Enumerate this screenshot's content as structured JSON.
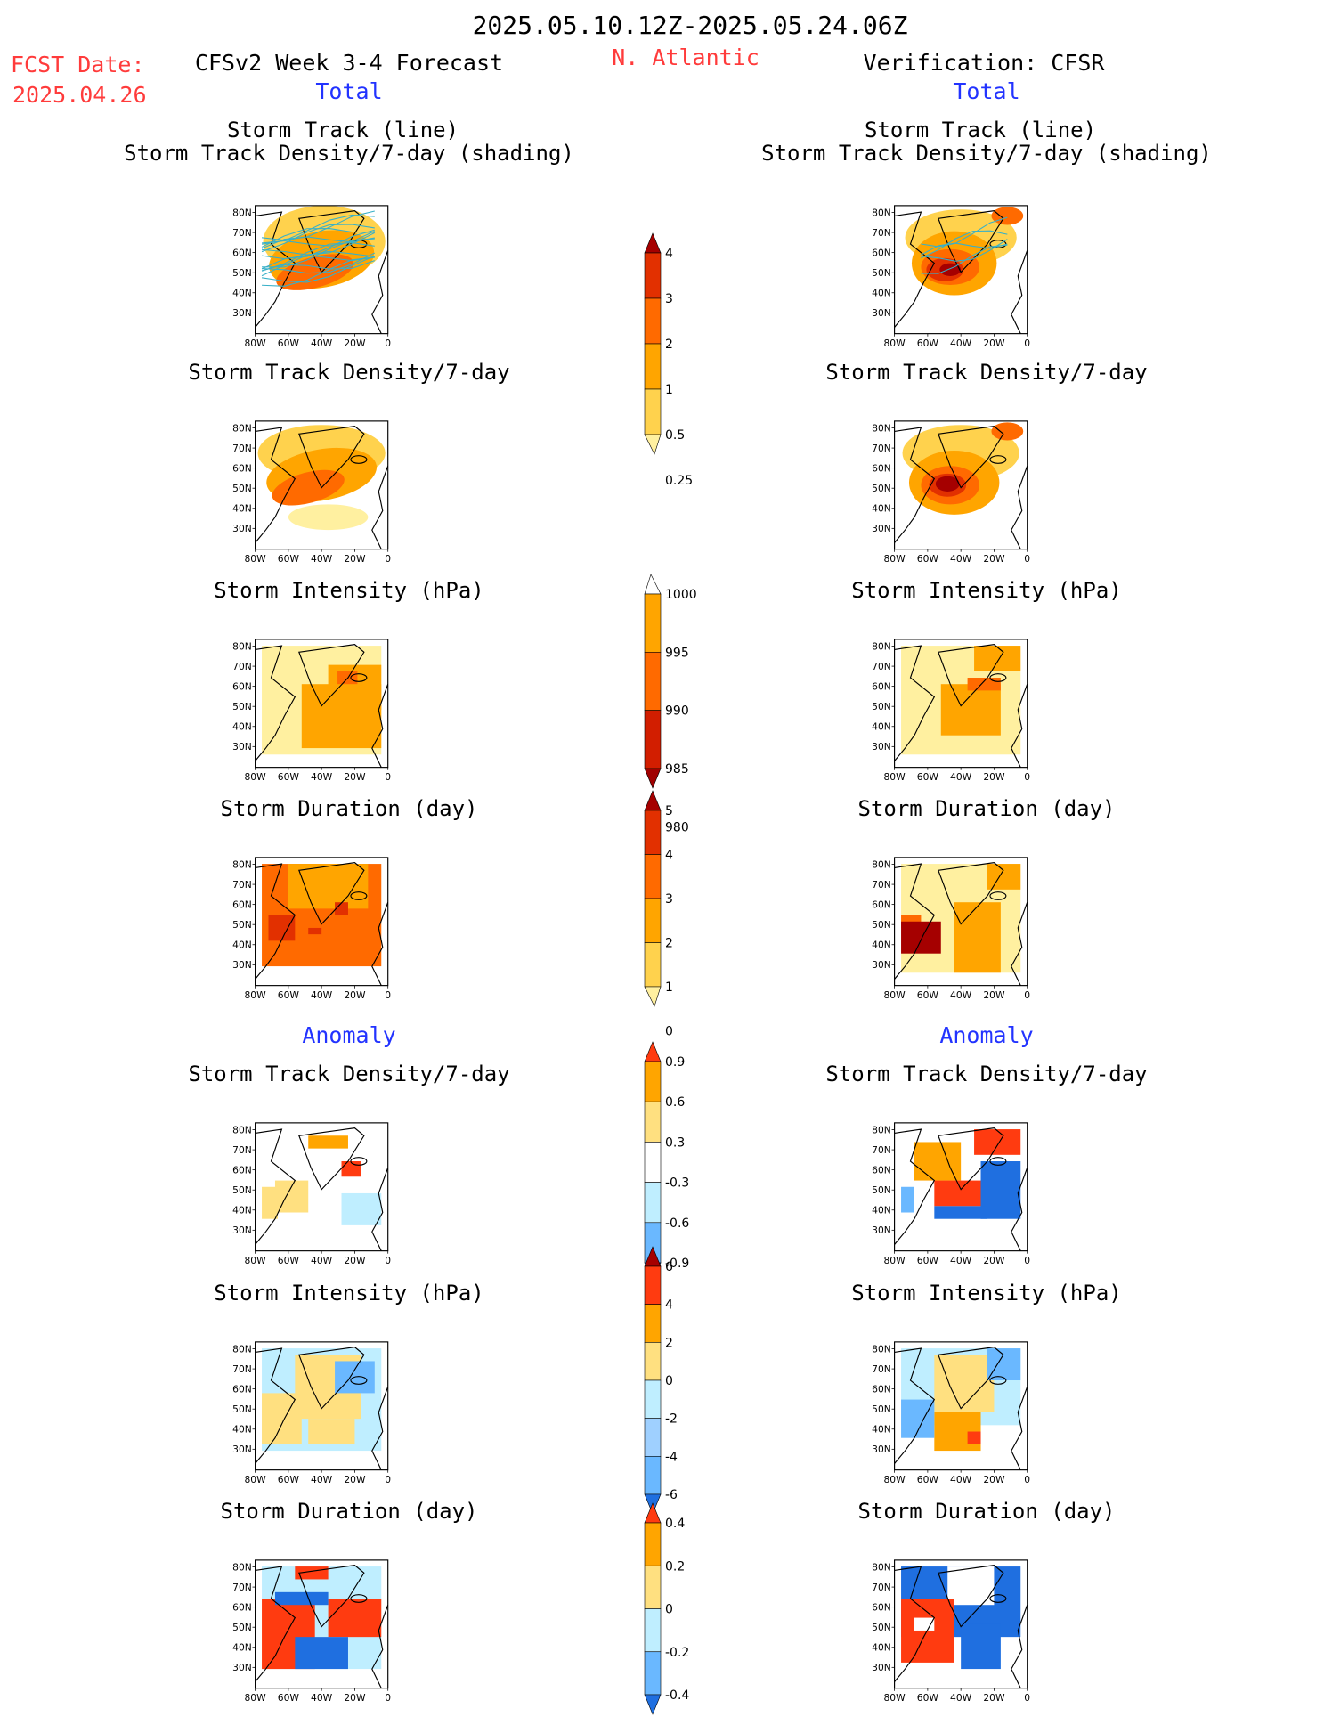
{
  "header": {
    "period": "2025.05.10.12Z-2025.05.24.06Z",
    "fcst_label": "FCST Date:",
    "fcst_date": "2025.04.26",
    "model_title": "CFSv2 Week 3-4 Forecast",
    "region": "N. Atlantic",
    "verification": "Verification: CFSR",
    "total_left": "Total",
    "total_right": "Total",
    "anomaly_left": "Anomaly",
    "anomaly_right": "Anomaly"
  },
  "axes": {
    "lat_ticks": [
      "80N",
      "70N",
      "60N",
      "50N",
      "40N",
      "30N"
    ],
    "lon_ticks": [
      "80W",
      "60W",
      "40W",
      "20W",
      "0"
    ]
  },
  "panels": {
    "track": {
      "title_line1": "Storm Track (line)",
      "title_line2": "Storm Track Density/7-day (shading)"
    },
    "density": {
      "title": "Storm Track Density/7-day"
    },
    "intensity": {
      "title": "Storm Intensity (hPa)"
    },
    "duration": {
      "title": "Storm Duration (day)"
    }
  },
  "colorbars": {
    "density_total": {
      "labels": [
        "4",
        "3",
        "2",
        "1",
        "0.5",
        "0.25"
      ],
      "colors": [
        "#a50000",
        "#e23000",
        "#ff6a00",
        "#ffa500",
        "#ffd24d",
        "#fff0a0"
      ]
    },
    "intensity_total": {
      "labels": [
        "1000",
        "995",
        "990",
        "985",
        "980"
      ],
      "colors": [
        "#fff7b0",
        "#ffa500",
        "#ff6a00",
        "#d21e00",
        "#a00000"
      ]
    },
    "duration_total": {
      "labels": [
        "5",
        "4",
        "3",
        "2",
        "1",
        "0"
      ],
      "colors": [
        "#a50000",
        "#e23000",
        "#ff6a00",
        "#ffa500",
        "#ffd24d",
        "#fff0a0"
      ]
    },
    "density_anom": {
      "labels": [
        "0.9",
        "0.6",
        "0.3",
        "-0.3",
        "-0.6",
        "-0.9"
      ],
      "colors": [
        "#ff3b10",
        "#ffa500",
        "#ffe080",
        "#ffffff",
        "#bfeeff",
        "#6ab8ff",
        "#1f6fe0"
      ]
    },
    "intensity_anom": {
      "labels": [
        "6",
        "4",
        "2",
        "0",
        "-2",
        "-4",
        "-6"
      ],
      "colors": [
        "#a50000",
        "#ff3b10",
        "#ffa500",
        "#ffe080",
        "#bfeeff",
        "#9fd0ff",
        "#6ab8ff",
        "#1f6fe0"
      ]
    },
    "duration_anom": {
      "labels": [
        "0.4",
        "0.2",
        "0",
        "-0.2",
        "-0.4"
      ],
      "colors": [
        "#ff3b10",
        "#ffa500",
        "#ffe080",
        "#bfeeff",
        "#6ab8ff",
        "#1f6fe0"
      ]
    }
  }
}
